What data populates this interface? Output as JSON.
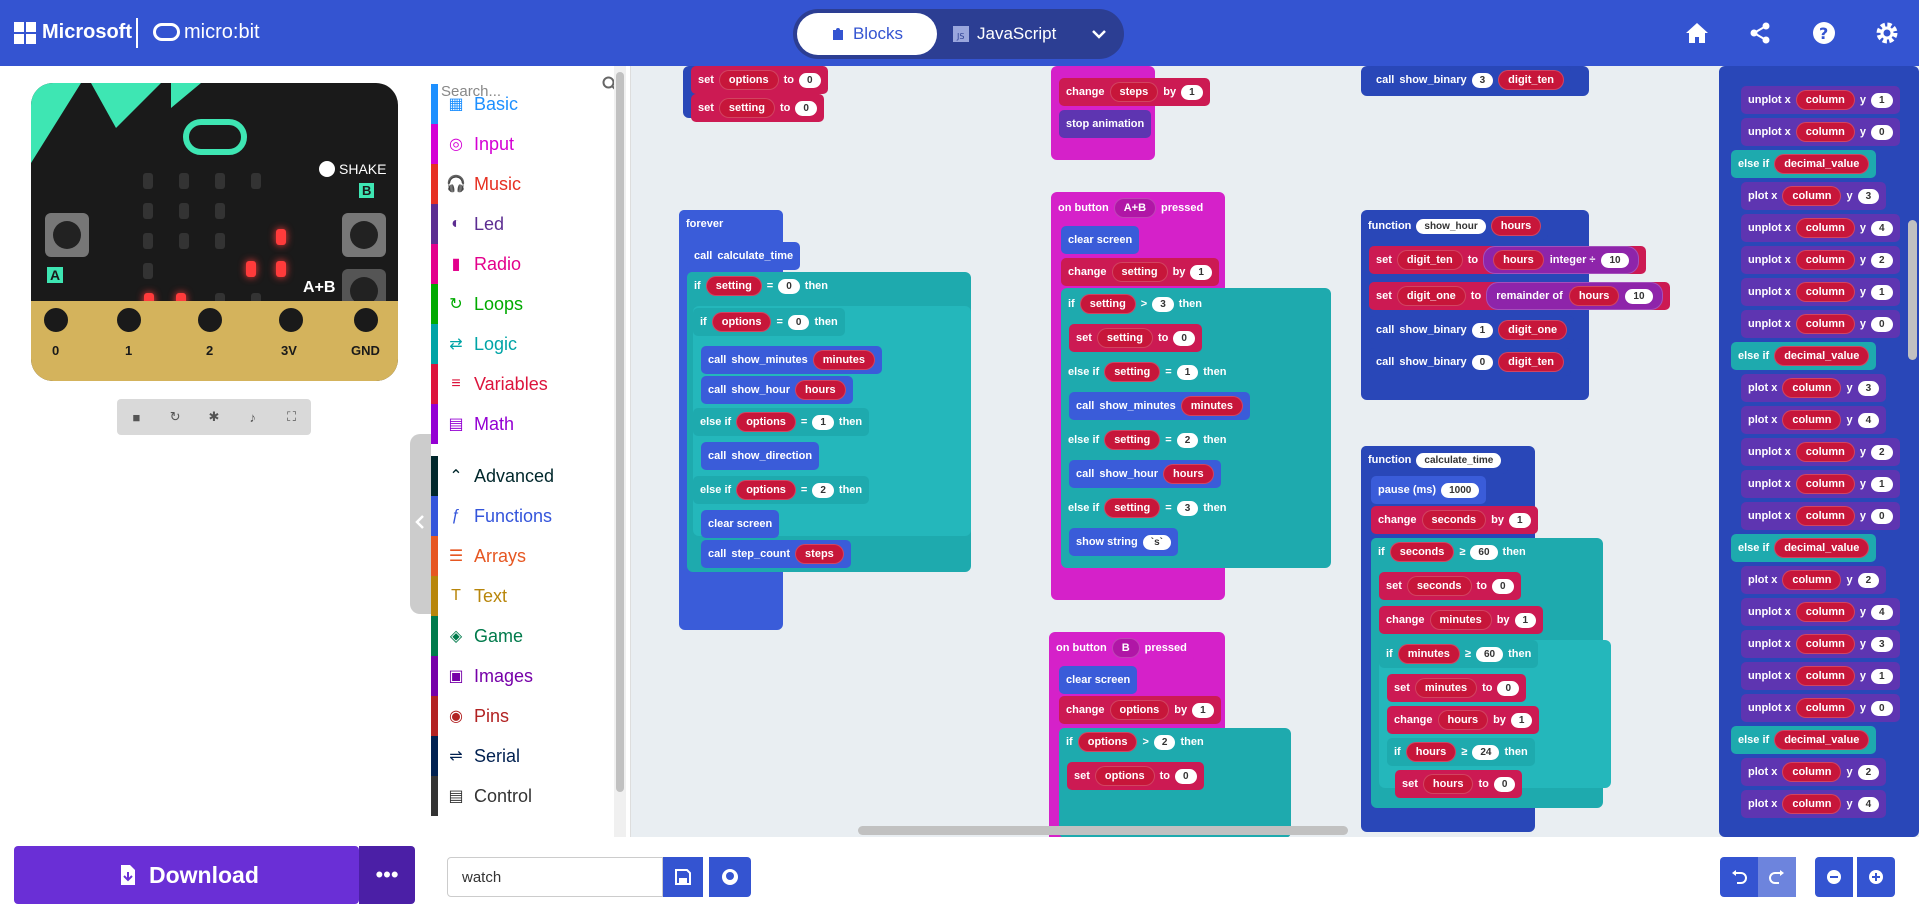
{
  "header": {
    "brand": "Microsoft",
    "product": "micro:bit",
    "tabs": {
      "blocks": "Blocks",
      "javascript": "JavaScript"
    },
    "icons": [
      "home-icon",
      "share-icon",
      "help-icon",
      "settings-icon"
    ]
  },
  "simulator": {
    "shake_label": "SHAKE",
    "button_a": "A",
    "button_b": "B",
    "button_ab": "A+B",
    "pins": [
      "0",
      "1",
      "2",
      "3V",
      "GND"
    ]
  },
  "toolbox": {
    "search_placeholder": "Search...",
    "categories": [
      {
        "label": "Basic",
        "color": "#1e90ff"
      },
      {
        "label": "Input",
        "color": "#d400d4"
      },
      {
        "label": "Music",
        "color": "#e63022"
      },
      {
        "label": "Led",
        "color": "#5c2d91"
      },
      {
        "label": "Radio",
        "color": "#e3008c"
      },
      {
        "label": "Loops",
        "color": "#00aa00"
      },
      {
        "label": "Logic",
        "color": "#00a4a6"
      },
      {
        "label": "Variables",
        "color": "#dc143c"
      },
      {
        "label": "Math",
        "color": "#9400d3"
      },
      {
        "label": "Advanced",
        "color": "#00272b"
      },
      {
        "label": "Functions",
        "color": "#3455db"
      },
      {
        "label": "Arrays",
        "color": "#e65722"
      },
      {
        "label": "Text",
        "color": "#b8860b"
      },
      {
        "label": "Game",
        "color": "#007a4b"
      },
      {
        "label": "Images",
        "color": "#7600a8"
      },
      {
        "label": "Pins",
        "color": "#b22222"
      },
      {
        "label": "Serial",
        "color": "#002050"
      },
      {
        "label": "Control",
        "color": "#333333"
      }
    ]
  },
  "blocks": {
    "set": "set",
    "to": "to",
    "change": "change",
    "by": "by",
    "if": "if",
    "else_if": "else if",
    "then": "then",
    "call": "call",
    "function": "function",
    "forever": "forever",
    "on_button": "on button",
    "pressed": "pressed",
    "clear_screen": "clear screen",
    "stop_animation": "stop animation",
    "pause": "pause (ms)",
    "pause_val": "1000",
    "show_string": "show string",
    "show_string_val": "`s`",
    "plot": "plot x",
    "unplot": "unplot x",
    "y": "y",
    "integer": "integer ÷",
    "remainder": "remainder of",
    "eq": "=",
    "gt": ">",
    "gte": "≥",
    "vars": {
      "options": "options",
      "setting": "setting",
      "steps": "steps",
      "minutes": "minutes",
      "hours": "hours",
      "seconds": "seconds",
      "digit_ten": "digit_ten",
      "digit_one": "digit_one",
      "column": "column",
      "decimal_value": "decimal_value"
    },
    "fns": {
      "calculate_time": "calculate_time",
      "show_minutes": "show_minutes",
      "show_hour": "show_hour",
      "show_direction": "show_direction",
      "step_count": "step_count",
      "show_binary": "show_binary"
    },
    "buttons": {
      "ab": "A+B",
      "b": "B"
    },
    "nums": {
      "n0": "0",
      "n1": "1",
      "n2": "2",
      "n3": "3",
      "n4": "4",
      "n10": "10",
      "n24": "24",
      "n60": "60"
    }
  },
  "bottom": {
    "download": "Download",
    "project_name": "watch"
  }
}
